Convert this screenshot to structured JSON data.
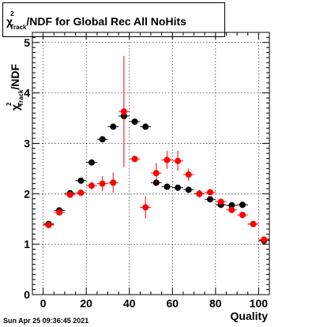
{
  "chart_data": {
    "type": "scatter",
    "title_main": "χ",
    "title_sup": "2",
    "title_sub": "Track",
    "title_rest": "/NDF for Global Rec All NoHits",
    "xlabel": "Quality",
    "ylabel_main": "χ",
    "ylabel_sup": "2",
    "ylabel_sub": "Track",
    "ylabel_rest": "/NDF",
    "xlim": [
      -5,
      105
    ],
    "ylim": [
      0,
      5.2
    ],
    "x_major_ticks": [
      0,
      20,
      40,
      60,
      80,
      100
    ],
    "y_major_ticks": [
      0,
      1,
      2,
      3,
      4,
      5
    ],
    "grid": true,
    "series": [
      {
        "color": "#000000",
        "points": [
          {
            "x": 2.5,
            "y": 1.4,
            "err": 0.03
          },
          {
            "x": 7.5,
            "y": 1.67,
            "err": 0.03
          },
          {
            "x": 12.5,
            "y": 2.01,
            "err": 0.03
          },
          {
            "x": 17.5,
            "y": 2.26,
            "err": 0.03
          },
          {
            "x": 22.5,
            "y": 2.62,
            "err": 0.03
          },
          {
            "x": 27.5,
            "y": 3.08,
            "err": 0.03
          },
          {
            "x": 32.5,
            "y": 3.33,
            "err": 0.03
          },
          {
            "x": 37.5,
            "y": 3.54,
            "err": 0.03
          },
          {
            "x": 42.5,
            "y": 3.43,
            "err": 0.03
          },
          {
            "x": 47.5,
            "y": 3.33,
            "err": 0.03
          },
          {
            "x": 52.5,
            "y": 2.22,
            "err": 0.03
          },
          {
            "x": 57.5,
            "y": 2.14,
            "err": 0.03
          },
          {
            "x": 62.5,
            "y": 2.12,
            "err": 0.03
          },
          {
            "x": 67.5,
            "y": 2.08,
            "err": 0.03
          },
          {
            "x": 72.5,
            "y": 2.0,
            "err": 0.03
          },
          {
            "x": 77.5,
            "y": 1.89,
            "err": 0.03
          },
          {
            "x": 82.5,
            "y": 1.78,
            "err": 0.03
          },
          {
            "x": 87.5,
            "y": 1.77,
            "err": 0.03
          },
          {
            "x": 92.5,
            "y": 1.78,
            "err": 0.03
          },
          {
            "x": 97.5,
            "y": 1.4,
            "err": 0.03
          },
          {
            "x": 102.5,
            "y": 1.07,
            "err": 0.03
          }
        ]
      },
      {
        "color": "#ff0000",
        "points": [
          {
            "x": 2.5,
            "y": 1.38,
            "err": 0.06
          },
          {
            "x": 7.5,
            "y": 1.63,
            "err": 0.06
          },
          {
            "x": 12.5,
            "y": 1.98,
            "err": 0.06
          },
          {
            "x": 17.5,
            "y": 2.02,
            "err": 0.06
          },
          {
            "x": 22.5,
            "y": 2.16,
            "err": 0.08
          },
          {
            "x": 27.5,
            "y": 2.2,
            "err": 0.15
          },
          {
            "x": 32.5,
            "y": 2.22,
            "err": 0.2
          },
          {
            "x": 37.5,
            "y": 3.63,
            "err": 1.1
          },
          {
            "x": 42.5,
            "y": 2.69,
            "err": 0.05
          },
          {
            "x": 47.5,
            "y": 1.73,
            "err": 0.22
          },
          {
            "x": 52.5,
            "y": 2.41,
            "err": 0.2
          },
          {
            "x": 57.5,
            "y": 2.67,
            "err": 0.18
          },
          {
            "x": 62.5,
            "y": 2.65,
            "err": 0.2
          },
          {
            "x": 67.5,
            "y": 2.38,
            "err": 0.12
          },
          {
            "x": 72.5,
            "y": 2.0,
            "err": 0.08
          },
          {
            "x": 77.5,
            "y": 2.03,
            "err": 0.06
          },
          {
            "x": 82.5,
            "y": 1.84,
            "err": 0.06
          },
          {
            "x": 87.5,
            "y": 1.68,
            "err": 0.05
          },
          {
            "x": 92.5,
            "y": 1.58,
            "err": 0.05
          },
          {
            "x": 97.5,
            "y": 1.4,
            "err": 0.05
          },
          {
            "x": 102.5,
            "y": 1.09,
            "err": 0.05
          }
        ]
      }
    ]
  },
  "footer": {
    "timestamp": "Sun Apr 25 09:36:45 2021"
  }
}
